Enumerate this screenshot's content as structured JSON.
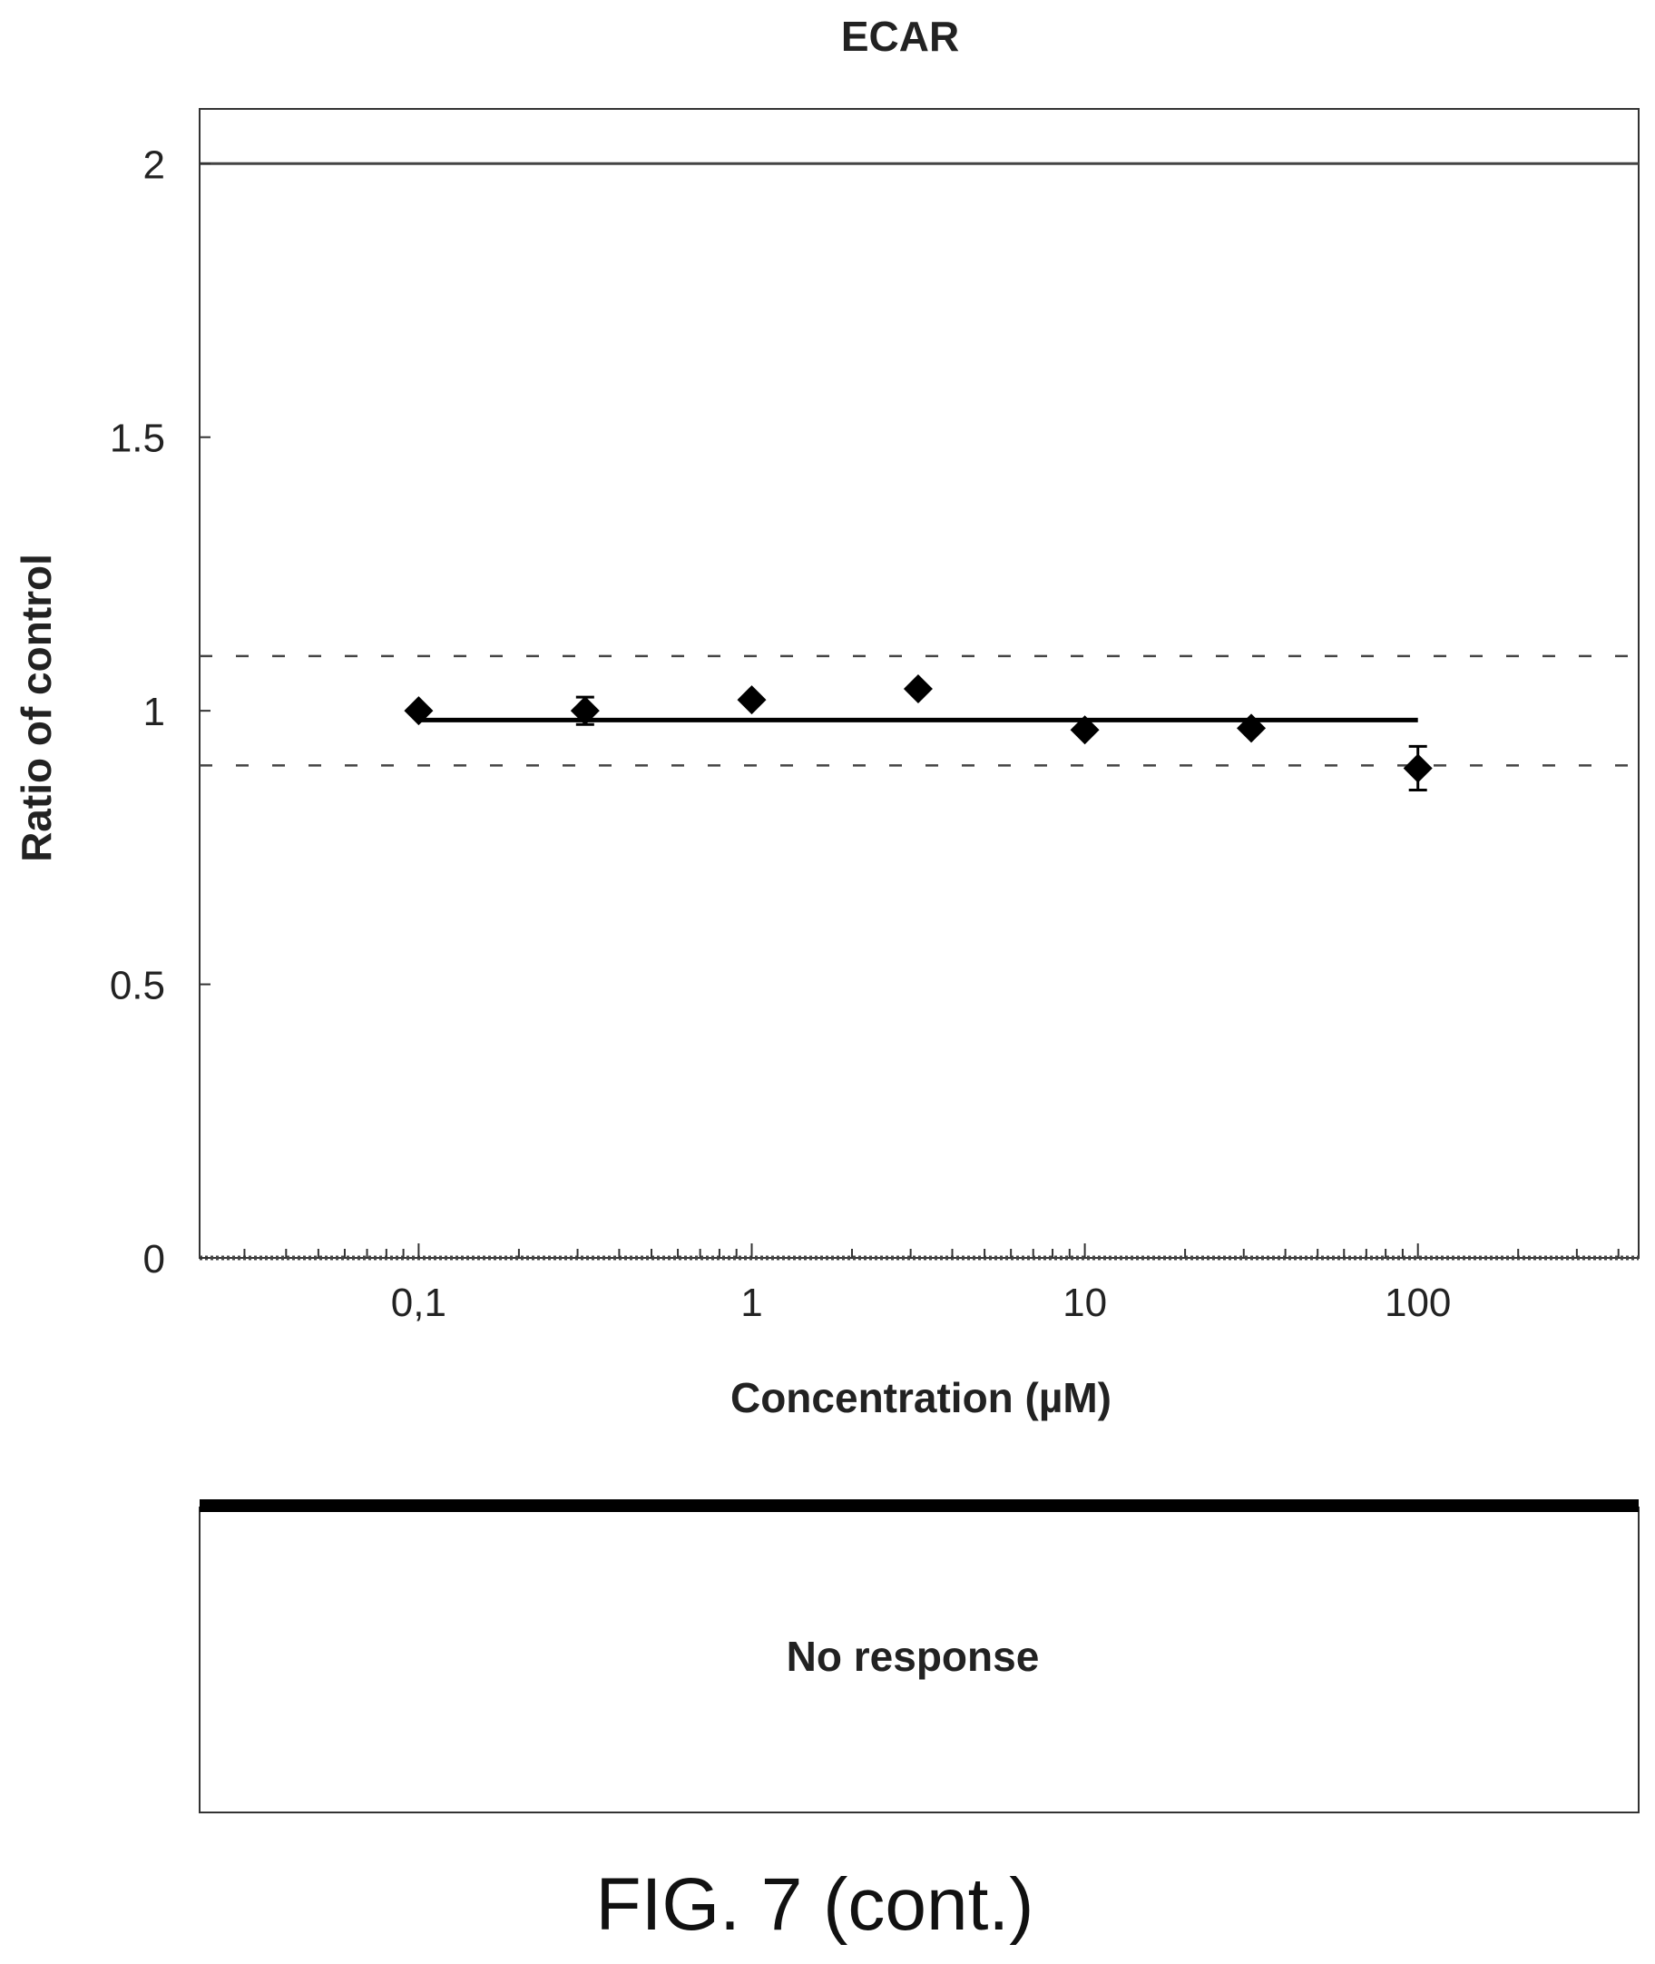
{
  "chart_data": {
    "type": "scatter",
    "title": "ECAR",
    "xlabel": "Concentration (µM)",
    "ylabel": "Ratio of control",
    "x_scale": "log",
    "xlim": [
      0.022,
      460
    ],
    "ylim": [
      0,
      2.1
    ],
    "x_ticks": [
      {
        "value": 0.1,
        "label": "0,1"
      },
      {
        "value": 1,
        "label": "1"
      },
      {
        "value": 10,
        "label": "10"
      },
      {
        "value": 100,
        "label": "100"
      }
    ],
    "y_ticks": [
      {
        "value": 0,
        "label": "0"
      },
      {
        "value": 0.5,
        "label": "0.5"
      },
      {
        "value": 1,
        "label": "1"
      },
      {
        "value": 1.5,
        "label": "1.5"
      },
      {
        "value": 2,
        "label": "2"
      }
    ],
    "series": [
      {
        "marker": "diamond",
        "x": [
          0.1,
          0.316,
          1,
          3.16,
          10,
          31.6,
          100
        ],
        "y": [
          1.0,
          1.0,
          1.02,
          1.04,
          0.965,
          0.968,
          0.895
        ],
        "error": [
          0,
          0.025,
          0,
          0,
          0,
          0,
          0.04
        ]
      }
    ],
    "fit_line": {
      "x": [
        0.1,
        100
      ],
      "y": [
        0.983,
        0.983
      ]
    },
    "reference_lines": [
      {
        "y": 2.0,
        "style": "solid"
      },
      {
        "y": 1.1,
        "style": "dashed"
      },
      {
        "y": 0.9,
        "style": "dashed"
      },
      {
        "y": 0.0,
        "style": "dotted"
      }
    ],
    "grid": false
  },
  "result_box": {
    "text": "No response"
  },
  "caption": "FIG. 7 (cont.)"
}
